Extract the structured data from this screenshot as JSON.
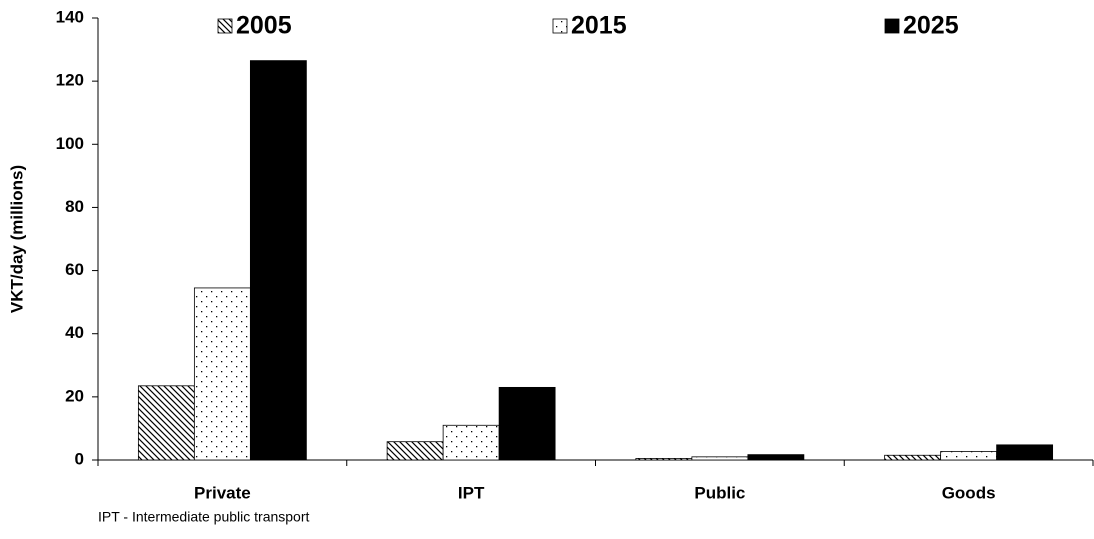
{
  "chart_data": {
    "type": "bar",
    "y_label": "VKT/day (millions)",
    "footnote": "IPT - Intermediate public transport",
    "categories": [
      "Private",
      "IPT",
      "Public",
      "Goods"
    ],
    "series": [
      {
        "name": "2005",
        "color": "#000000",
        "pattern": "hatch",
        "values": [
          23.5,
          5.8,
          0.5,
          1.5
        ]
      },
      {
        "name": "2015",
        "color": "#000000",
        "pattern": "dots",
        "values": [
          54.5,
          11,
          1,
          2.7
        ]
      },
      {
        "name": "2025",
        "color": "#000000",
        "pattern": "solid",
        "values": [
          126.5,
          23,
          1.7,
          4.8
        ]
      }
    ],
    "ylim": [
      0,
      140
    ],
    "yticks": [
      0,
      20,
      40,
      60,
      80,
      100,
      120,
      140
    ],
    "grid": false
  }
}
